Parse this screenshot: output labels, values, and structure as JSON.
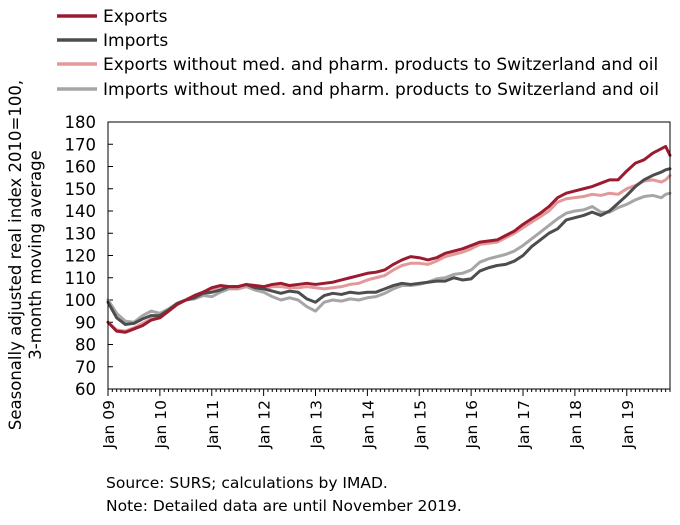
{
  "chart_data": {
    "type": "line",
    "ylabel_lines": [
      "Seasonally adjusted real index 2010=100,",
      "3-month moving average"
    ],
    "ylim": [
      60,
      180
    ],
    "yticks": [
      60,
      70,
      80,
      90,
      100,
      110,
      120,
      130,
      140,
      150,
      160,
      170,
      180
    ],
    "xlim": [
      "2009-01",
      "2019-11"
    ],
    "xtick_labels": [
      "Jan 09",
      "Jan 10",
      "Jan 11",
      "Jan 12",
      "Jan 13",
      "Jan 14",
      "Jan 15",
      "Jan 16",
      "Jan 17",
      "Jan 18",
      "Jan 19"
    ],
    "grid": false,
    "legend_position": "top",
    "colors": {
      "exports": "#9b1b30",
      "imports": "#4d4d4f",
      "exports_adj": "#e3999a",
      "imports_adj": "#a6a6a6"
    },
    "series": [
      {
        "name": "Exports",
        "key": "exports",
        "points": [
          [
            "2009-01",
            90
          ],
          [
            "2009-03",
            86
          ],
          [
            "2009-05",
            85.5
          ],
          [
            "2009-07",
            87
          ],
          [
            "2009-09",
            88.5
          ],
          [
            "2009-11",
            91
          ],
          [
            "2010-01",
            92
          ],
          [
            "2010-03",
            95
          ],
          [
            "2010-05",
            98
          ],
          [
            "2010-07",
            100
          ],
          [
            "2010-09",
            102
          ],
          [
            "2010-11",
            103.5
          ],
          [
            "2011-01",
            105.5
          ],
          [
            "2011-03",
            106.5
          ],
          [
            "2011-05",
            106
          ],
          [
            "2011-07",
            106
          ],
          [
            "2011-09",
            107
          ],
          [
            "2011-11",
            106.5
          ],
          [
            "2012-01",
            106
          ],
          [
            "2012-03",
            107
          ],
          [
            "2012-05",
            107.5
          ],
          [
            "2012-07",
            106.5
          ],
          [
            "2012-09",
            107
          ],
          [
            "2012-11",
            107.5
          ],
          [
            "2013-01",
            107
          ],
          [
            "2013-03",
            107.5
          ],
          [
            "2013-05",
            108
          ],
          [
            "2013-07",
            109
          ],
          [
            "2013-09",
            110
          ],
          [
            "2013-11",
            111
          ],
          [
            "2014-01",
            112
          ],
          [
            "2014-03",
            112.5
          ],
          [
            "2014-05",
            113.5
          ],
          [
            "2014-07",
            116
          ],
          [
            "2014-09",
            118
          ],
          [
            "2014-11",
            119.5
          ],
          [
            "2015-01",
            119
          ],
          [
            "2015-03",
            118
          ],
          [
            "2015-05",
            119
          ],
          [
            "2015-07",
            121
          ],
          [
            "2015-09",
            122
          ],
          [
            "2015-11",
            123
          ],
          [
            "2016-01",
            124.5
          ],
          [
            "2016-03",
            126
          ],
          [
            "2016-05",
            126.5
          ],
          [
            "2016-07",
            127
          ],
          [
            "2016-09",
            129
          ],
          [
            "2016-11",
            131
          ],
          [
            "2017-01",
            134
          ],
          [
            "2017-03",
            136.5
          ],
          [
            "2017-05",
            139
          ],
          [
            "2017-07",
            142
          ],
          [
            "2017-09",
            146
          ],
          [
            "2017-11",
            148
          ],
          [
            "2018-01",
            149
          ],
          [
            "2018-03",
            150
          ],
          [
            "2018-05",
            151
          ],
          [
            "2018-07",
            152.5
          ],
          [
            "2018-09",
            154
          ],
          [
            "2018-11",
            154
          ],
          [
            "2019-01",
            158
          ],
          [
            "2019-03",
            161.5
          ],
          [
            "2019-05",
            163
          ],
          [
            "2019-07",
            166
          ],
          [
            "2019-09",
            168
          ],
          [
            "2019-10",
            169
          ],
          [
            "2019-11",
            165
          ]
        ]
      },
      {
        "name": "Imports",
        "key": "imports",
        "points": [
          [
            "2009-01",
            99
          ],
          [
            "2009-03",
            92
          ],
          [
            "2009-05",
            89
          ],
          [
            "2009-07",
            89.5
          ],
          [
            "2009-09",
            91.5
          ],
          [
            "2009-11",
            93
          ],
          [
            "2010-01",
            93
          ],
          [
            "2010-03",
            95.5
          ],
          [
            "2010-05",
            98.5
          ],
          [
            "2010-07",
            100
          ],
          [
            "2010-09",
            101
          ],
          [
            "2010-11",
            103
          ],
          [
            "2011-01",
            103.5
          ],
          [
            "2011-03",
            104.5
          ],
          [
            "2011-05",
            106
          ],
          [
            "2011-07",
            106
          ],
          [
            "2011-09",
            107
          ],
          [
            "2011-11",
            105.5
          ],
          [
            "2012-01",
            105
          ],
          [
            "2012-03",
            104
          ],
          [
            "2012-05",
            103
          ],
          [
            "2012-07",
            104
          ],
          [
            "2012-09",
            103.5
          ],
          [
            "2012-11",
            100.5
          ],
          [
            "2013-01",
            99
          ],
          [
            "2013-03",
            102
          ],
          [
            "2013-05",
            103
          ],
          [
            "2013-07",
            102.5
          ],
          [
            "2013-09",
            103.5
          ],
          [
            "2013-11",
            103
          ],
          [
            "2014-01",
            103.5
          ],
          [
            "2014-03",
            103.5
          ],
          [
            "2014-05",
            105
          ],
          [
            "2014-07",
            106.5
          ],
          [
            "2014-09",
            107.5
          ],
          [
            "2014-11",
            107
          ],
          [
            "2015-01",
            107.5
          ],
          [
            "2015-03",
            108
          ],
          [
            "2015-05",
            108.5
          ],
          [
            "2015-07",
            108.5
          ],
          [
            "2015-09",
            110
          ],
          [
            "2015-11",
            109
          ],
          [
            "2016-01",
            109.5
          ],
          [
            "2016-03",
            113
          ],
          [
            "2016-05",
            114.5
          ],
          [
            "2016-07",
            115.5
          ],
          [
            "2016-09",
            116
          ],
          [
            "2016-11",
            117.5
          ],
          [
            "2017-01",
            120
          ],
          [
            "2017-03",
            124
          ],
          [
            "2017-05",
            127
          ],
          [
            "2017-07",
            130
          ],
          [
            "2017-09",
            132
          ],
          [
            "2017-11",
            136
          ],
          [
            "2018-01",
            137
          ],
          [
            "2018-03",
            138
          ],
          [
            "2018-05",
            139.5
          ],
          [
            "2018-07",
            138
          ],
          [
            "2018-09",
            140
          ],
          [
            "2018-11",
            143.5
          ],
          [
            "2019-01",
            147
          ],
          [
            "2019-03",
            151
          ],
          [
            "2019-05",
            154
          ],
          [
            "2019-07",
            156
          ],
          [
            "2019-09",
            157.5
          ],
          [
            "2019-10",
            158.5
          ],
          [
            "2019-11",
            159
          ]
        ]
      },
      {
        "name": "Exports without med. and pharm. products to Switzerland and oil",
        "key": "exports_adj",
        "points": [
          [
            "2009-01",
            90
          ],
          [
            "2009-03",
            86.5
          ],
          [
            "2009-05",
            86
          ],
          [
            "2009-07",
            87.5
          ],
          [
            "2009-09",
            89.5
          ],
          [
            "2009-11",
            91.5
          ],
          [
            "2010-01",
            92
          ],
          [
            "2010-03",
            95
          ],
          [
            "2010-05",
            98
          ],
          [
            "2010-07",
            100
          ],
          [
            "2010-09",
            102
          ],
          [
            "2010-11",
            103.5
          ],
          [
            "2011-01",
            105
          ],
          [
            "2011-03",
            106
          ],
          [
            "2011-05",
            105.5
          ],
          [
            "2011-07",
            105.5
          ],
          [
            "2011-09",
            106
          ],
          [
            "2011-11",
            106
          ],
          [
            "2012-01",
            105
          ],
          [
            "2012-03",
            106
          ],
          [
            "2012-05",
            106
          ],
          [
            "2012-07",
            105.5
          ],
          [
            "2012-09",
            105.5
          ],
          [
            "2012-11",
            106
          ],
          [
            "2013-01",
            105.5
          ],
          [
            "2013-03",
            105
          ],
          [
            "2013-05",
            105.5
          ],
          [
            "2013-07",
            106
          ],
          [
            "2013-09",
            107
          ],
          [
            "2013-11",
            107.5
          ],
          [
            "2014-01",
            109
          ],
          [
            "2014-03",
            110
          ],
          [
            "2014-05",
            111
          ],
          [
            "2014-07",
            113.5
          ],
          [
            "2014-09",
            115.5
          ],
          [
            "2014-11",
            116.5
          ],
          [
            "2015-01",
            116.5
          ],
          [
            "2015-03",
            116
          ],
          [
            "2015-05",
            117.5
          ],
          [
            "2015-07",
            119.5
          ],
          [
            "2015-09",
            120.5
          ],
          [
            "2015-11",
            121.5
          ],
          [
            "2016-01",
            123
          ],
          [
            "2016-03",
            125
          ],
          [
            "2016-05",
            125.5
          ],
          [
            "2016-07",
            126
          ],
          [
            "2016-09",
            128
          ],
          [
            "2016-11",
            130
          ],
          [
            "2017-01",
            132.5
          ],
          [
            "2017-03",
            135
          ],
          [
            "2017-05",
            137.5
          ],
          [
            "2017-07",
            140
          ],
          [
            "2017-09",
            144
          ],
          [
            "2017-11",
            145.5
          ],
          [
            "2018-01",
            146
          ],
          [
            "2018-03",
            146.5
          ],
          [
            "2018-05",
            147.5
          ],
          [
            "2018-07",
            147
          ],
          [
            "2018-09",
            148
          ],
          [
            "2018-11",
            147.5
          ],
          [
            "2019-01",
            150
          ],
          [
            "2019-03",
            151.5
          ],
          [
            "2019-05",
            153.5
          ],
          [
            "2019-07",
            154
          ],
          [
            "2019-09",
            153
          ],
          [
            "2019-10",
            154
          ],
          [
            "2019-11",
            156
          ]
        ]
      },
      {
        "name": "Imports without med. and pharm. products to Switzerland and oil",
        "key": "imports_adj",
        "points": [
          [
            "2009-01",
            100
          ],
          [
            "2009-03",
            94
          ],
          [
            "2009-05",
            90.5
          ],
          [
            "2009-07",
            90
          ],
          [
            "2009-09",
            93
          ],
          [
            "2009-11",
            95
          ],
          [
            "2010-01",
            94
          ],
          [
            "2010-03",
            96
          ],
          [
            "2010-05",
            98.5
          ],
          [
            "2010-07",
            100
          ],
          [
            "2010-09",
            100.5
          ],
          [
            "2010-11",
            102
          ],
          [
            "2011-01",
            101.5
          ],
          [
            "2011-03",
            103.5
          ],
          [
            "2011-05",
            105
          ],
          [
            "2011-07",
            105
          ],
          [
            "2011-09",
            106
          ],
          [
            "2011-11",
            104.5
          ],
          [
            "2012-01",
            103.5
          ],
          [
            "2012-03",
            101.5
          ],
          [
            "2012-05",
            100
          ],
          [
            "2012-07",
            101
          ],
          [
            "2012-09",
            100
          ],
          [
            "2012-11",
            97
          ],
          [
            "2013-01",
            95
          ],
          [
            "2013-03",
            99
          ],
          [
            "2013-05",
            100
          ],
          [
            "2013-07",
            99.5
          ],
          [
            "2013-09",
            100.5
          ],
          [
            "2013-11",
            100
          ],
          [
            "2014-01",
            101
          ],
          [
            "2014-03",
            101.5
          ],
          [
            "2014-05",
            103
          ],
          [
            "2014-07",
            105
          ],
          [
            "2014-09",
            106.5
          ],
          [
            "2014-11",
            106.5
          ],
          [
            "2015-01",
            107
          ],
          [
            "2015-03",
            108
          ],
          [
            "2015-05",
            109.5
          ],
          [
            "2015-07",
            110
          ],
          [
            "2015-09",
            111.5
          ],
          [
            "2015-11",
            112
          ],
          [
            "2016-01",
            113.5
          ],
          [
            "2016-03",
            117
          ],
          [
            "2016-05",
            118.5
          ],
          [
            "2016-07",
            119.5
          ],
          [
            "2016-09",
            120.5
          ],
          [
            "2016-11",
            122
          ],
          [
            "2017-01",
            124.5
          ],
          [
            "2017-03",
            127.5
          ],
          [
            "2017-05",
            130.5
          ],
          [
            "2017-07",
            133.5
          ],
          [
            "2017-09",
            136.5
          ],
          [
            "2017-11",
            139
          ],
          [
            "2018-01",
            140
          ],
          [
            "2018-03",
            140.5
          ],
          [
            "2018-05",
            142
          ],
          [
            "2018-07",
            139.5
          ],
          [
            "2018-09",
            139.5
          ],
          [
            "2018-11",
            141.5
          ],
          [
            "2019-01",
            143
          ],
          [
            "2019-03",
            145
          ],
          [
            "2019-05",
            146.5
          ],
          [
            "2019-07",
            147
          ],
          [
            "2019-09",
            146
          ],
          [
            "2019-10",
            147.5
          ],
          [
            "2019-11",
            148
          ]
        ]
      }
    ]
  },
  "notes": {
    "source": "Source: SURS; calculations by IMAD.",
    "note": "Note: Detailed data are until November 2019."
  }
}
